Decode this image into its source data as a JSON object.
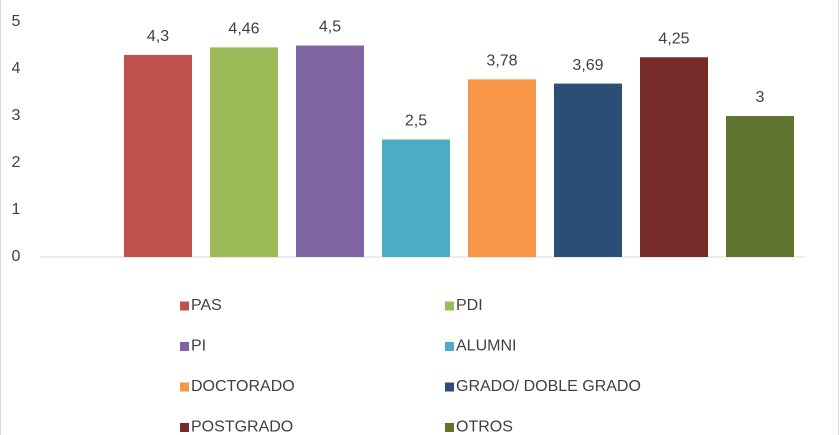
{
  "chart_data": {
    "type": "bar",
    "series": [
      {
        "name": "PAS",
        "color": "#c0504d",
        "values": [
          4.3
        ],
        "value_labels": [
          "4,3"
        ]
      },
      {
        "name": "PDI",
        "color": "#9bbb59",
        "values": [
          4.46
        ],
        "value_labels": [
          "4,46"
        ]
      },
      {
        "name": "PI",
        "color": "#8064a2",
        "values": [
          4.5
        ],
        "value_labels": [
          "4,5"
        ]
      },
      {
        "name": "ALUMNI",
        "color": "#4bacc6",
        "values": [
          2.5
        ],
        "value_labels": [
          "2,5"
        ]
      },
      {
        "name": "DOCTORADO",
        "color": "#f79646",
        "values": [
          3.78
        ],
        "value_labels": [
          "3,78"
        ]
      },
      {
        "name": "GRADO/ DOBLE GRADO",
        "color": "#2c4d75",
        "values": [
          3.69
        ],
        "value_labels": [
          "3,69"
        ]
      },
      {
        "name": "POSTGRADO",
        "color": "#772c2a",
        "values": [
          4.25
        ],
        "value_labels": [
          "4,25"
        ]
      },
      {
        "name": "OTROS",
        "color": "#5f7530",
        "values": [
          3
        ],
        "value_labels": [
          "3"
        ]
      }
    ],
    "ylim": [
      0,
      5
    ],
    "yticks": [
      0,
      1,
      2,
      3,
      4,
      5
    ],
    "grid": false,
    "legend": "bottom"
  }
}
